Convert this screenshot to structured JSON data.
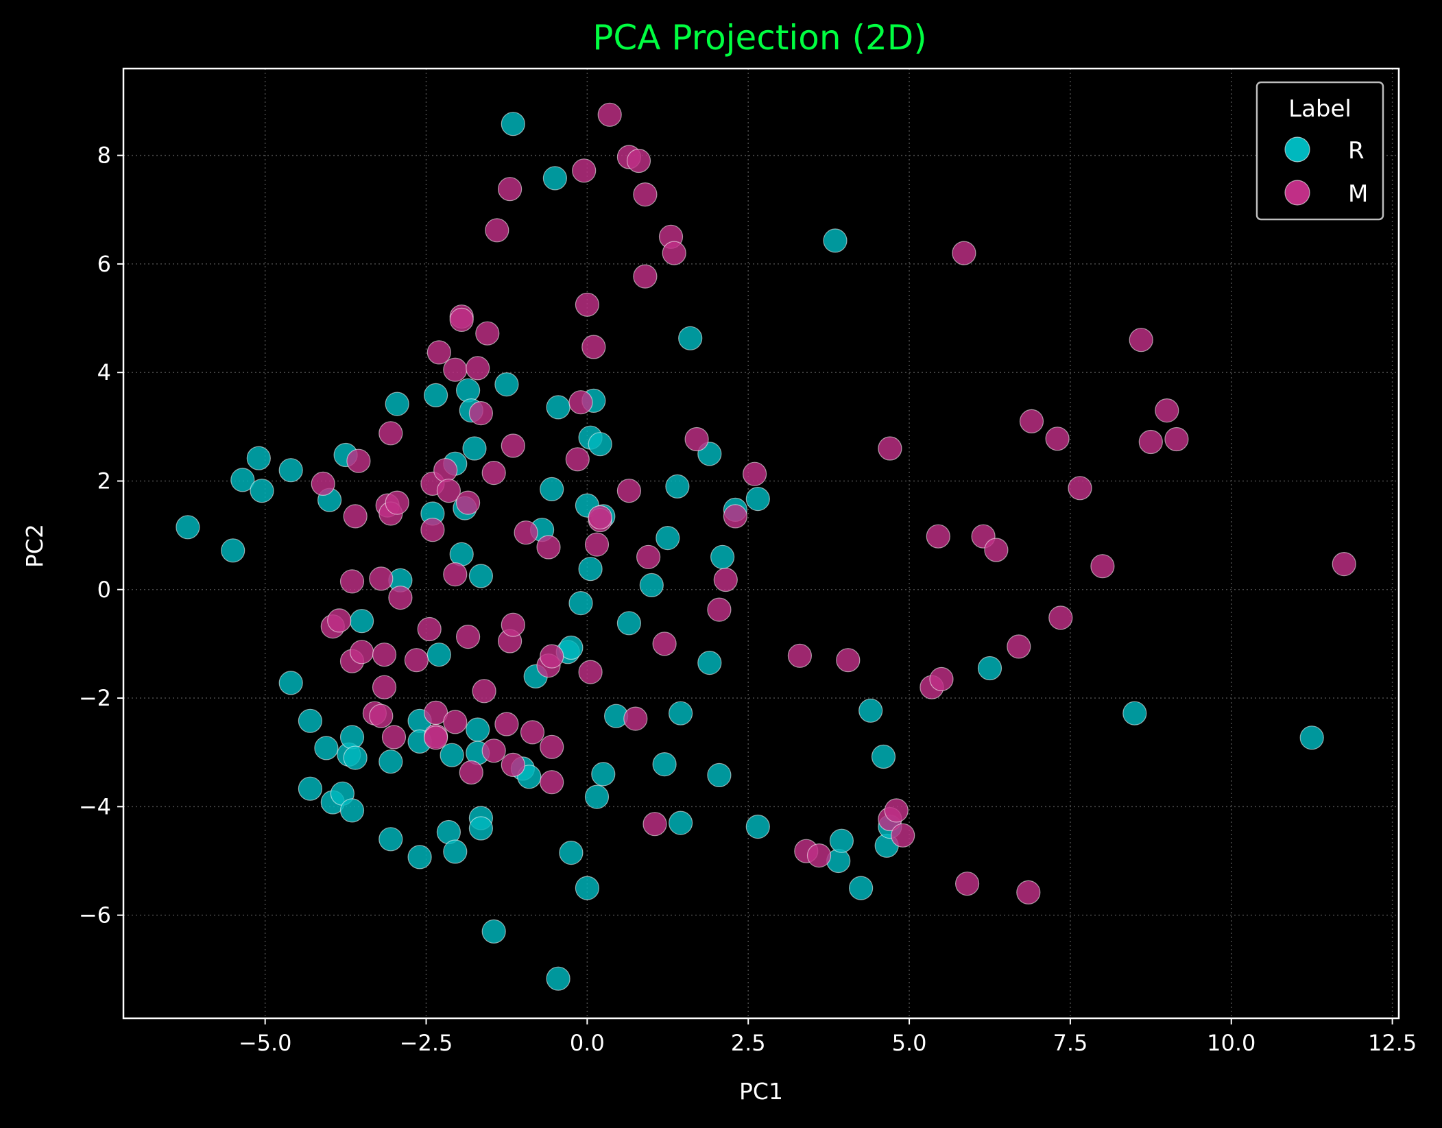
{
  "chart_data": {
    "type": "scatter",
    "title": "PCA Projection (2D)",
    "xlabel": "PC1",
    "ylabel": "PC2",
    "xlim": [
      -7.2,
      12.6
    ],
    "ylim": [
      -7.9,
      9.6
    ],
    "x_ticks": [
      -5.0,
      -2.5,
      0.0,
      2.5,
      5.0,
      7.5,
      10.0,
      12.5
    ],
    "x_tick_labels": [
      "−5.0",
      "−2.5",
      "0.0",
      "2.5",
      "5.0",
      "7.5",
      "10.0",
      "12.5"
    ],
    "y_ticks": [
      -6,
      -4,
      -2,
      0,
      2,
      4,
      6,
      8
    ],
    "y_tick_labels": [
      "−6",
      "−4",
      "−2",
      "0",
      "2",
      "4",
      "6",
      "8"
    ],
    "grid": true,
    "legend": {
      "title": "Label",
      "position": "upper right"
    },
    "colors": {
      "background": "#000000",
      "title": "#00ff41",
      "R": "#00b8be",
      "M": "#c02f86"
    },
    "series": [
      {
        "name": "R",
        "points": [
          [
            -6.2,
            1.15
          ],
          [
            -5.5,
            0.72
          ],
          [
            -5.35,
            2.02
          ],
          [
            -5.1,
            2.42
          ],
          [
            -5.05,
            1.82
          ],
          [
            -4.6,
            2.2
          ],
          [
            -4.6,
            -1.72
          ],
          [
            -4.3,
            -2.42
          ],
          [
            -4.3,
            -3.67
          ],
          [
            -4.05,
            -2.92
          ],
          [
            -4.0,
            1.65
          ],
          [
            -3.95,
            -3.92
          ],
          [
            -3.8,
            -3.76
          ],
          [
            -3.75,
            2.48
          ],
          [
            -3.7,
            -3.04
          ],
          [
            -3.65,
            -2.72
          ],
          [
            -3.65,
            -4.07
          ],
          [
            -3.6,
            -3.1
          ],
          [
            -3.5,
            -0.58
          ],
          [
            -3.05,
            -3.17
          ],
          [
            -3.05,
            -4.6
          ],
          [
            -2.95,
            3.42
          ],
          [
            -2.9,
            0.17
          ],
          [
            -2.6,
            -2.42
          ],
          [
            -2.6,
            -2.8
          ],
          [
            -2.6,
            -4.93
          ],
          [
            -2.4,
            1.4
          ],
          [
            -2.35,
            3.58
          ],
          [
            -2.3,
            -1.2
          ],
          [
            -2.15,
            -4.47
          ],
          [
            -2.1,
            -3.05
          ],
          [
            -2.05,
            2.32
          ],
          [
            -2.05,
            -4.83
          ],
          [
            -1.95,
            0.65
          ],
          [
            -1.9,
            1.5
          ],
          [
            -1.85,
            3.67
          ],
          [
            -1.8,
            3.3
          ],
          [
            -1.75,
            2.6
          ],
          [
            -1.7,
            -2.58
          ],
          [
            -1.7,
            -3.01
          ],
          [
            -1.65,
            -4.21
          ],
          [
            -1.65,
            -4.4
          ],
          [
            -1.65,
            0.25
          ],
          [
            -1.45,
            -6.3
          ],
          [
            -1.25,
            3.78
          ],
          [
            -1.15,
            8.58
          ],
          [
            -1.0,
            -3.3
          ],
          [
            -0.9,
            -3.45
          ],
          [
            -0.8,
            -1.6
          ],
          [
            -0.7,
            1.1
          ],
          [
            -0.55,
            1.85
          ],
          [
            -0.5,
            7.58
          ],
          [
            -0.45,
            3.36
          ],
          [
            -0.45,
            -7.17
          ],
          [
            -0.3,
            -1.15
          ],
          [
            -0.25,
            -4.85
          ],
          [
            -0.25,
            -1.07
          ],
          [
            -0.1,
            -0.25
          ],
          [
            0.0,
            -5.5
          ],
          [
            0.0,
            1.55
          ],
          [
            0.05,
            0.38
          ],
          [
            0.05,
            2.8
          ],
          [
            0.1,
            3.48
          ],
          [
            0.15,
            -3.82
          ],
          [
            0.2,
            2.68
          ],
          [
            0.25,
            1.35
          ],
          [
            0.25,
            -3.4
          ],
          [
            0.45,
            -2.33
          ],
          [
            0.65,
            -0.62
          ],
          [
            1.0,
            0.08
          ],
          [
            1.2,
            -3.22
          ],
          [
            1.25,
            0.95
          ],
          [
            1.4,
            1.9
          ],
          [
            1.45,
            -2.28
          ],
          [
            1.45,
            -4.3
          ],
          [
            1.6,
            4.63
          ],
          [
            1.9,
            2.5
          ],
          [
            1.9,
            -1.35
          ],
          [
            2.05,
            -3.42
          ],
          [
            2.1,
            0.6
          ],
          [
            2.3,
            1.47
          ],
          [
            2.65,
            1.67
          ],
          [
            2.65,
            -4.37
          ],
          [
            3.85,
            6.43
          ],
          [
            3.9,
            -5.0
          ],
          [
            3.95,
            -4.63
          ],
          [
            4.25,
            -5.5
          ],
          [
            4.4,
            -2.23
          ],
          [
            4.6,
            -3.08
          ],
          [
            4.65,
            -4.72
          ],
          [
            4.7,
            -4.37
          ],
          [
            6.25,
            -1.45
          ],
          [
            8.5,
            -2.28
          ],
          [
            11.25,
            -2.73
          ]
        ]
      },
      {
        "name": "M",
        "points": [
          [
            -4.1,
            1.95
          ],
          [
            -3.95,
            -0.68
          ],
          [
            -3.85,
            -0.57
          ],
          [
            -3.65,
            0.15
          ],
          [
            -3.65,
            -1.32
          ],
          [
            -3.6,
            1.35
          ],
          [
            -3.55,
            2.37
          ],
          [
            -3.5,
            -1.15
          ],
          [
            -3.3,
            -2.28
          ],
          [
            -3.2,
            -2.33
          ],
          [
            -3.2,
            0.2
          ],
          [
            -3.15,
            -1.8
          ],
          [
            -3.15,
            -1.2
          ],
          [
            -3.1,
            1.55
          ],
          [
            -3.05,
            1.4
          ],
          [
            -3.05,
            2.88
          ],
          [
            -3.0,
            -2.72
          ],
          [
            -2.95,
            1.6
          ],
          [
            -2.9,
            -0.15
          ],
          [
            -2.65,
            -1.3
          ],
          [
            -2.45,
            -0.73
          ],
          [
            -2.4,
            1.1
          ],
          [
            -2.4,
            1.95
          ],
          [
            -2.35,
            -2.7
          ],
          [
            -2.35,
            -2.73
          ],
          [
            -2.35,
            -2.27
          ],
          [
            -2.3,
            4.37
          ],
          [
            -2.2,
            2.2
          ],
          [
            -2.15,
            1.82
          ],
          [
            -2.05,
            4.05
          ],
          [
            -2.05,
            0.28
          ],
          [
            -2.05,
            -2.44
          ],
          [
            -1.95,
            5.03
          ],
          [
            -1.95,
            4.97
          ],
          [
            -1.85,
            1.6
          ],
          [
            -1.85,
            -0.87
          ],
          [
            -1.8,
            -3.37
          ],
          [
            -1.7,
            4.08
          ],
          [
            -1.65,
            3.25
          ],
          [
            -1.6,
            -1.87
          ],
          [
            -1.55,
            4.72
          ],
          [
            -1.45,
            -2.97
          ],
          [
            -1.45,
            2.15
          ],
          [
            -1.4,
            6.62
          ],
          [
            -1.25,
            -2.48
          ],
          [
            -1.2,
            -0.95
          ],
          [
            -1.2,
            7.38
          ],
          [
            -1.15,
            -0.65
          ],
          [
            -1.15,
            2.65
          ],
          [
            -1.15,
            -3.23
          ],
          [
            -0.95,
            1.05
          ],
          [
            -0.85,
            -2.63
          ],
          [
            -0.6,
            0.78
          ],
          [
            -0.6,
            -1.4
          ],
          [
            -0.55,
            -1.23
          ],
          [
            -0.55,
            -3.55
          ],
          [
            -0.55,
            -2.9
          ],
          [
            -0.15,
            2.4
          ],
          [
            -0.1,
            3.45
          ],
          [
            -0.05,
            7.72
          ],
          [
            0.0,
            5.25
          ],
          [
            0.05,
            -1.52
          ],
          [
            0.1,
            4.47
          ],
          [
            0.15,
            0.83
          ],
          [
            0.2,
            1.28
          ],
          [
            0.2,
            1.33
          ],
          [
            0.35,
            8.75
          ],
          [
            0.65,
            1.82
          ],
          [
            0.65,
            7.97
          ],
          [
            0.75,
            -2.38
          ],
          [
            0.8,
            7.9
          ],
          [
            0.9,
            7.28
          ],
          [
            0.9,
            5.77
          ],
          [
            0.95,
            0.6
          ],
          [
            1.05,
            -4.32
          ],
          [
            1.2,
            -1.0
          ],
          [
            1.3,
            6.5
          ],
          [
            1.35,
            6.2
          ],
          [
            1.7,
            2.77
          ],
          [
            2.05,
            -0.37
          ],
          [
            2.15,
            0.18
          ],
          [
            2.3,
            1.35
          ],
          [
            2.6,
            2.13
          ],
          [
            3.3,
            -1.22
          ],
          [
            3.4,
            -4.82
          ],
          [
            3.6,
            -4.9
          ],
          [
            4.05,
            -1.3
          ],
          [
            4.7,
            2.6
          ],
          [
            4.7,
            -4.23
          ],
          [
            4.8,
            -4.07
          ],
          [
            4.9,
            -4.53
          ],
          [
            5.35,
            -1.8
          ],
          [
            5.45,
            0.98
          ],
          [
            5.5,
            -1.65
          ],
          [
            5.85,
            6.2
          ],
          [
            5.9,
            -5.42
          ],
          [
            6.15,
            0.98
          ],
          [
            6.35,
            0.73
          ],
          [
            6.7,
            -1.05
          ],
          [
            6.85,
            -5.58
          ],
          [
            6.9,
            3.1
          ],
          [
            7.3,
            2.78
          ],
          [
            7.35,
            -0.52
          ],
          [
            7.65,
            1.87
          ],
          [
            8.0,
            0.43
          ],
          [
            8.6,
            4.6
          ],
          [
            8.75,
            2.72
          ],
          [
            9.0,
            3.3
          ],
          [
            9.15,
            2.77
          ],
          [
            11.75,
            0.47
          ]
        ]
      }
    ]
  }
}
